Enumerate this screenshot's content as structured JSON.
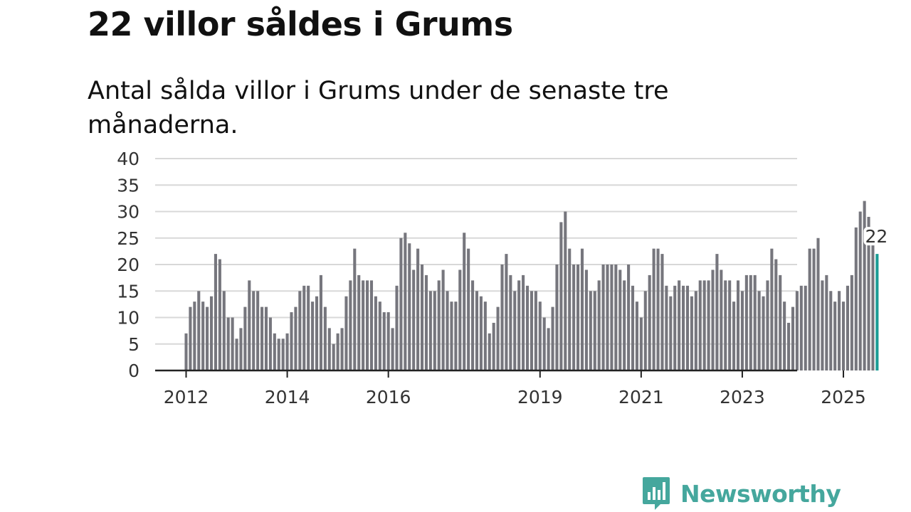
{
  "header": {
    "title": "22 villor såldes i Grums",
    "subtitle": "Antal sålda villor i Grums under de senaste tre månaderna."
  },
  "brand": {
    "name": "Newsworthy",
    "color": "#45a79d",
    "icon": "newsworthy-logo-icon"
  },
  "colors": {
    "bar": "#76767d",
    "highlight": "#1a9c95",
    "grid": "#d8d8d8",
    "axis": "#222222"
  },
  "chart_data": {
    "type": "bar",
    "title": "22 villor såldes i Grums",
    "subtitle": "Antal sålda villor i Grums under de senaste tre månaderna.",
    "xlabel": "",
    "ylabel": "",
    "ylim": [
      0,
      40
    ],
    "yticks": [
      0,
      5,
      10,
      15,
      20,
      25,
      30,
      35,
      40
    ],
    "grid": true,
    "start": "2012-01",
    "xtick_labels": [
      "2012",
      "2014",
      "2016",
      "2019",
      "2021",
      "2023",
      "2025"
    ],
    "xtick_month_index": [
      0,
      24,
      48,
      84,
      108,
      132,
      156
    ],
    "values": [
      7,
      12,
      13,
      15,
      13,
      12,
      14,
      22,
      21,
      15,
      10,
      10,
      6,
      8,
      12,
      17,
      15,
      15,
      12,
      12,
      10,
      7,
      6,
      6,
      7,
      11,
      12,
      15,
      16,
      16,
      13,
      14,
      18,
      12,
      8,
      5,
      7,
      8,
      14,
      17,
      23,
      18,
      17,
      17,
      17,
      14,
      13,
      11,
      11,
      8,
      16,
      25,
      26,
      24,
      19,
      23,
      20,
      18,
      15,
      15,
      17,
      19,
      15,
      13,
      13,
      19,
      26,
      23,
      17,
      15,
      14,
      13,
      7,
      9,
      12,
      20,
      22,
      18,
      15,
      17,
      18,
      16,
      15,
      15,
      13,
      10,
      8,
      12,
      20,
      28,
      30,
      23,
      20,
      20,
      23,
      19,
      15,
      15,
      17,
      20,
      20,
      20,
      20,
      19,
      17,
      20,
      16,
      13,
      10,
      15,
      18,
      23,
      23,
      22,
      16,
      14,
      16,
      17,
      16,
      16,
      14,
      15,
      17,
      17,
      17,
      19,
      22,
      19,
      17,
      17,
      13,
      17,
      15,
      18,
      18,
      18,
      15,
      14,
      17,
      23,
      21,
      18,
      13,
      9,
      12,
      15,
      16,
      16,
      23,
      23,
      25,
      17,
      18,
      15,
      13,
      15,
      13,
      16,
      18,
      27,
      30,
      32,
      29,
      24,
      22
    ],
    "highlight": {
      "index": 164,
      "value": 22,
      "label": "22"
    }
  }
}
